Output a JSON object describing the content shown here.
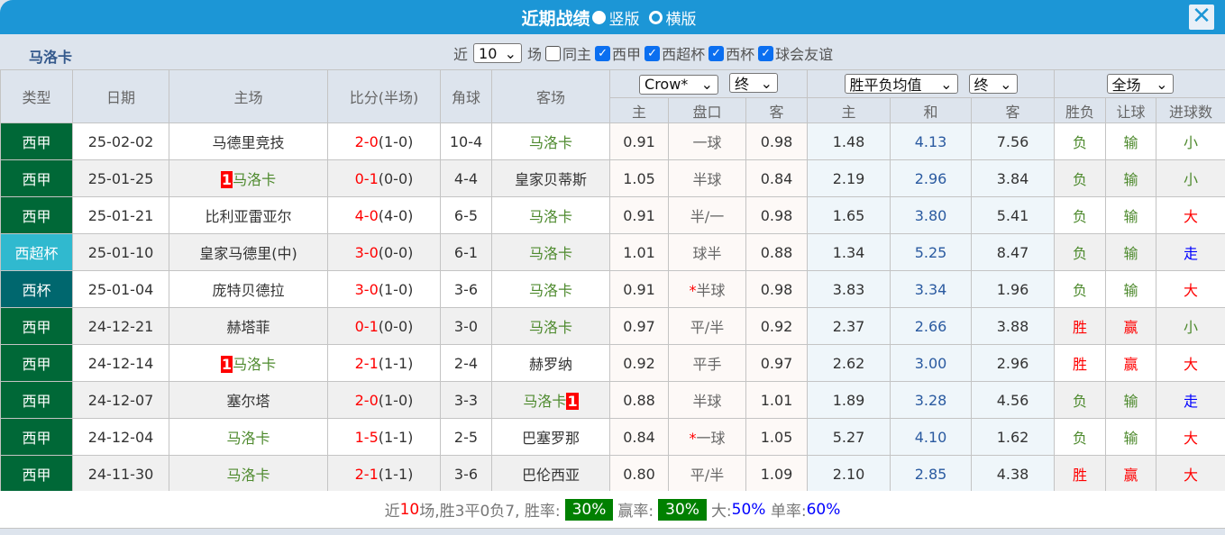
{
  "title": "近期战绩",
  "view_options": [
    "竖版",
    "横版"
  ],
  "close": "✕",
  "team": "马洛卡",
  "filter": {
    "prefix": "近",
    "count": "10",
    "suffix": "场",
    "same_home": "同主",
    "same_home_checked": false,
    "leagues": [
      {
        "label": "西甲",
        "checked": true
      },
      {
        "label": "西超杯",
        "checked": true
      },
      {
        "label": "西杯",
        "checked": true
      },
      {
        "label": "球会友谊",
        "checked": true
      }
    ]
  },
  "headers": {
    "type": "类型",
    "date": "日期",
    "home": "主场",
    "score": "比分(半场)",
    "corner": "角球",
    "away": "客场",
    "company": "Crow*",
    "asia_time": "终",
    "euro_type": "胜平负均值",
    "euro_time": "终",
    "scope": "全场",
    "asia_sub": [
      "主",
      "盘口",
      "客"
    ],
    "euro_sub": [
      "主",
      "和",
      "客"
    ],
    "res_sub": [
      "胜负",
      "让球",
      "进球数"
    ]
  },
  "rows": [
    {
      "type": "西甲",
      "tc": "",
      "date": "25-02-02",
      "home": "马德里竞技",
      "hg": false,
      "htag": "",
      "score": "2-0",
      "half": "(1-0)",
      "corner": "10-4",
      "away": "马洛卡",
      "ag": true,
      "atag": "",
      "ah": "0.91",
      "pan": "一球",
      "aa": "0.98",
      "eh": "1.48",
      "ed": "4.13",
      "ea": "7.56",
      "wl": "负",
      "hc": "输",
      "ou": "小"
    },
    {
      "type": "西甲",
      "tc": "",
      "date": "25-01-25",
      "home": "马洛卡",
      "hg": true,
      "htag": "1",
      "score": "0-1",
      "half": "(0-0)",
      "corner": "4-4",
      "away": "皇家贝蒂斯",
      "ag": false,
      "atag": "",
      "ah": "1.05",
      "pan": "半球",
      "aa": "0.84",
      "eh": "2.19",
      "ed": "2.96",
      "ea": "3.84",
      "wl": "负",
      "hc": "输",
      "ou": "小"
    },
    {
      "type": "西甲",
      "tc": "",
      "date": "25-01-21",
      "home": "比利亚雷亚尔",
      "hg": false,
      "htag": "",
      "score": "4-0",
      "half": "(4-0)",
      "corner": "6-5",
      "away": "马洛卡",
      "ag": true,
      "atag": "",
      "ah": "0.91",
      "pan": "半/一",
      "aa": "0.98",
      "eh": "1.65",
      "ed": "3.80",
      "ea": "5.41",
      "wl": "负",
      "hc": "输",
      "ou": "大"
    },
    {
      "type": "西超杯",
      "tc": "c2",
      "date": "25-01-10",
      "home": "皇家马德里(中)",
      "hg": false,
      "htag": "",
      "score": "3-0",
      "half": "(0-0)",
      "corner": "6-1",
      "away": "马洛卡",
      "ag": true,
      "atag": "",
      "ah": "1.01",
      "pan": "球半",
      "aa": "0.88",
      "eh": "1.34",
      "ed": "5.25",
      "ea": "8.47",
      "wl": "负",
      "hc": "输",
      "ou": "走"
    },
    {
      "type": "西杯",
      "tc": "c3",
      "date": "25-01-04",
      "home": "庞特贝德拉",
      "hg": false,
      "htag": "",
      "score": "3-0",
      "half": "(1-0)",
      "corner": "3-6",
      "away": "马洛卡",
      "ag": true,
      "atag": "",
      "ah": "0.91",
      "pan": "*半球",
      "aa": "0.98",
      "eh": "3.83",
      "ed": "3.34",
      "ea": "1.96",
      "wl": "负",
      "hc": "输",
      "ou": "大"
    },
    {
      "type": "西甲",
      "tc": "",
      "date": "24-12-21",
      "home": "赫塔菲",
      "hg": false,
      "htag": "",
      "score": "0-1",
      "half": "(0-0)",
      "corner": "3-0",
      "away": "马洛卡",
      "ag": true,
      "atag": "",
      "ah": "0.97",
      "pan": "平/半",
      "aa": "0.92",
      "eh": "2.37",
      "ed": "2.66",
      "ea": "3.88",
      "wl": "胜",
      "hc": "赢",
      "ou": "小"
    },
    {
      "type": "西甲",
      "tc": "",
      "date": "24-12-14",
      "home": "马洛卡",
      "hg": true,
      "htag": "1",
      "score": "2-1",
      "half": "(1-1)",
      "corner": "2-4",
      "away": "赫罗纳",
      "ag": false,
      "atag": "",
      "ah": "0.92",
      "pan": "平手",
      "aa": "0.97",
      "eh": "2.62",
      "ed": "3.00",
      "ea": "2.96",
      "wl": "胜",
      "hc": "赢",
      "ou": "大"
    },
    {
      "type": "西甲",
      "tc": "",
      "date": "24-12-07",
      "home": "塞尔塔",
      "hg": false,
      "htag": "",
      "score": "2-0",
      "half": "(1-0)",
      "corner": "3-3",
      "away": "马洛卡",
      "ag": true,
      "atag": "1",
      "ah": "0.88",
      "pan": "半球",
      "aa": "1.01",
      "eh": "1.89",
      "ed": "3.28",
      "ea": "4.56",
      "wl": "负",
      "hc": "输",
      "ou": "走"
    },
    {
      "type": "西甲",
      "tc": "",
      "date": "24-12-04",
      "home": "马洛卡",
      "hg": true,
      "htag": "",
      "score": "1-5",
      "half": "(1-1)",
      "corner": "2-5",
      "away": "巴塞罗那",
      "ag": false,
      "atag": "",
      "ah": "0.84",
      "pan": "*一球",
      "aa": "1.05",
      "eh": "5.27",
      "ed": "4.10",
      "ea": "1.62",
      "wl": "负",
      "hc": "输",
      "ou": "大"
    },
    {
      "type": "西甲",
      "tc": "",
      "date": "24-11-30",
      "home": "马洛卡",
      "hg": true,
      "htag": "",
      "score": "2-1",
      "half": "(1-1)",
      "corner": "3-6",
      "away": "巴伦西亚",
      "ag": false,
      "atag": "",
      "ah": "0.80",
      "pan": "平/半",
      "aa": "1.09",
      "eh": "2.10",
      "ed": "2.85",
      "ea": "4.38",
      "wl": "胜",
      "hc": "赢",
      "ou": "大"
    }
  ],
  "footer": {
    "p1": "近",
    "n": "10",
    "p2": "场,胜3平0负7, 胜率:",
    "win_rate": "30%",
    "p3": "赢率:",
    "hc_rate": "30%",
    "p4": "大:",
    "big_rate": "50%",
    "p5": "单率:",
    "odd_rate": "60%"
  }
}
